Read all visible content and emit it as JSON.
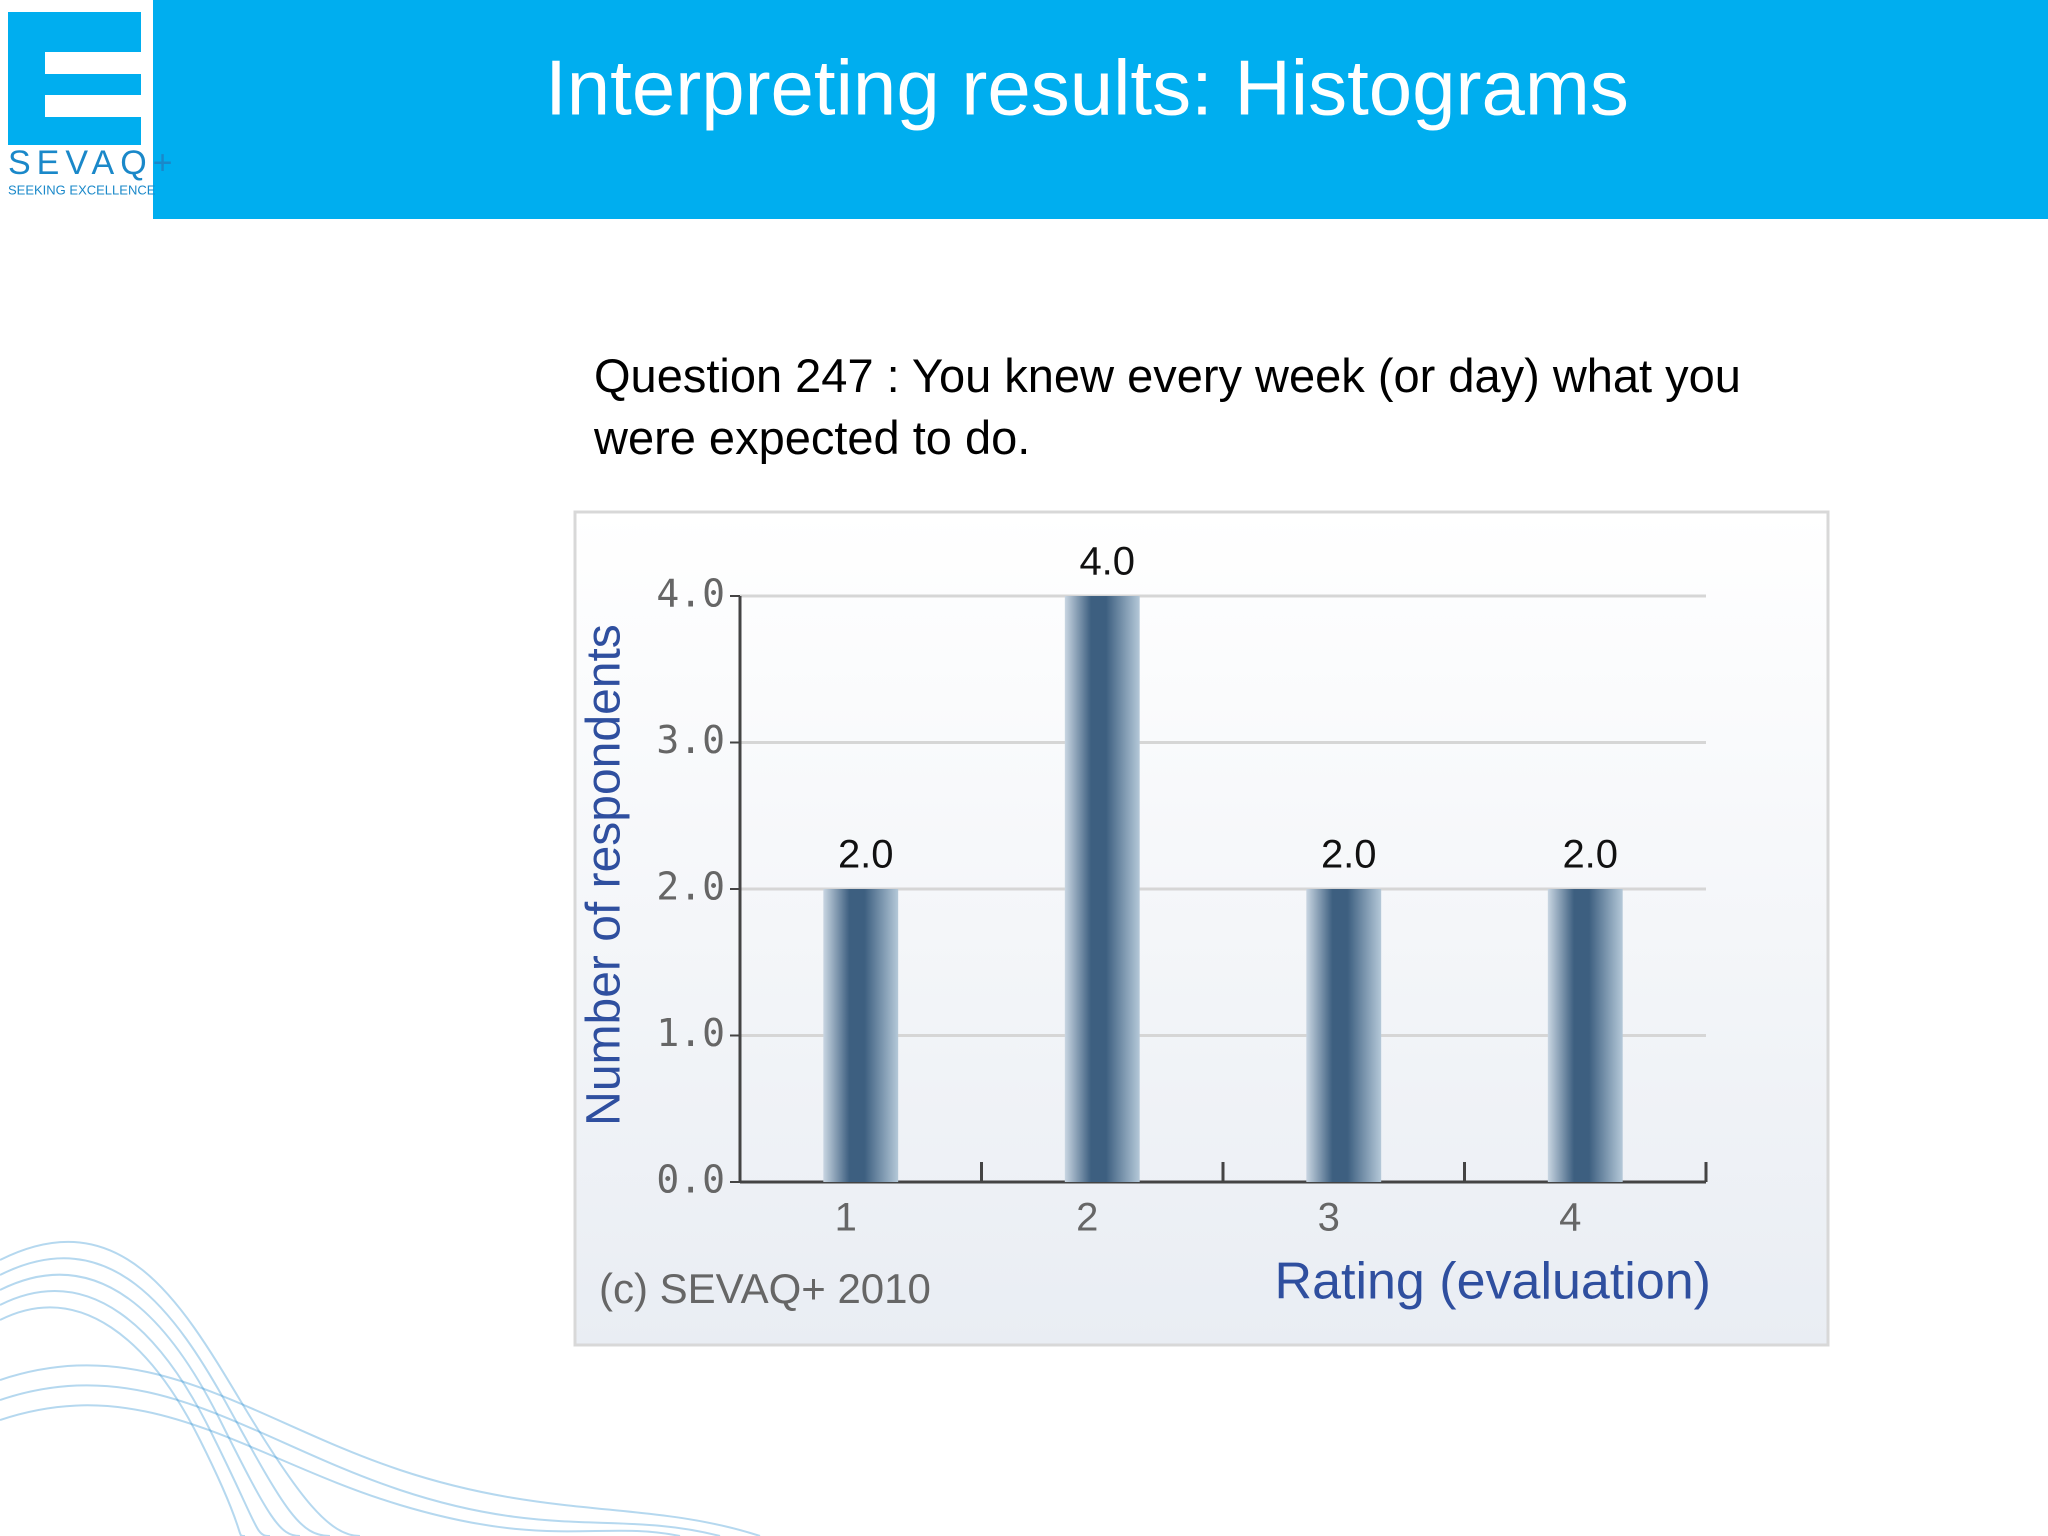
{
  "header": {
    "title": "Interpreting results: Histograms",
    "logo_name": "SEVAQ+",
    "logo_tagline": "SEEKING EXCELLENCE"
  },
  "question": "Question 247 : You knew every week (or day) what you were expected to do.",
  "chart_data": {
    "type": "bar",
    "categories": [
      "1",
      "2",
      "3",
      "4"
    ],
    "values": [
      2,
      4,
      2,
      2
    ],
    "value_labels": [
      "2.0",
      "4.0",
      "2.0",
      "2.0"
    ],
    "color": "#3d5f80",
    "xlabel": "Rating (evaluation)",
    "ylabel": "Number of respondents",
    "annotation": "(c) SEVAQ+ 2010",
    "ylim": [
      0,
      4
    ],
    "yticks": [
      {
        "value": 0,
        "label": "0.0"
      },
      {
        "value": 1,
        "label": "1.0"
      },
      {
        "value": 2,
        "label": "2.0"
      },
      {
        "value": 3,
        "label": "3.0"
      },
      {
        "value": 4,
        "label": "4.0"
      }
    ],
    "grid": true
  }
}
